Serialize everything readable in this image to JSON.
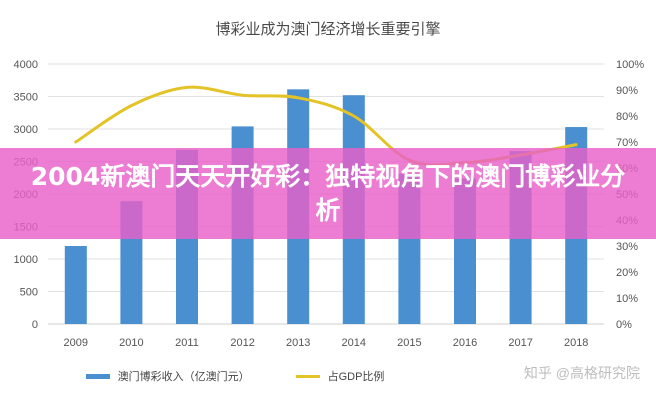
{
  "banner": {
    "headline": "2004新澳门天天开好彩：独特视角下的澳门博彩业分析"
  },
  "watermark": "知乎 @高格研究院",
  "chart_data": {
    "type": "bar",
    "title": "博彩业成为澳门经济增长重要引擎",
    "categories": [
      "2009",
      "2010",
      "2011",
      "2012",
      "2013",
      "2014",
      "2015",
      "2016",
      "2017",
      "2018"
    ],
    "series": [
      {
        "name": "澳门博彩收入（亿澳门元）",
        "type": "bar",
        "axis": "left",
        "values": [
          1200,
          1890,
          2680,
          3040,
          3610,
          3520,
          2310,
          2240,
          2660,
          3030
        ]
      },
      {
        "name": "占GDP比例",
        "type": "line",
        "axis": "right",
        "values": [
          70,
          84,
          91,
          88,
          87,
          80,
          63,
          62,
          65,
          69
        ]
      }
    ],
    "y_left": {
      "ylim": [
        0,
        4000
      ],
      "ticks": [
        "0",
        "500",
        "1000",
        "1500",
        "2000",
        "2500",
        "3000",
        "3500",
        "4000"
      ]
    },
    "y_right": {
      "ylim": [
        0,
        100
      ],
      "ticks": [
        "0%",
        "10%",
        "20%",
        "30%",
        "40%",
        "50%",
        "60%",
        "70%",
        "80%",
        "90%",
        "100%"
      ]
    },
    "grid": true,
    "legend_position": "bottom",
    "colors": {
      "bar": "#4a8fd0",
      "line": "#e4c327",
      "grid": "#e2e2e2"
    }
  }
}
